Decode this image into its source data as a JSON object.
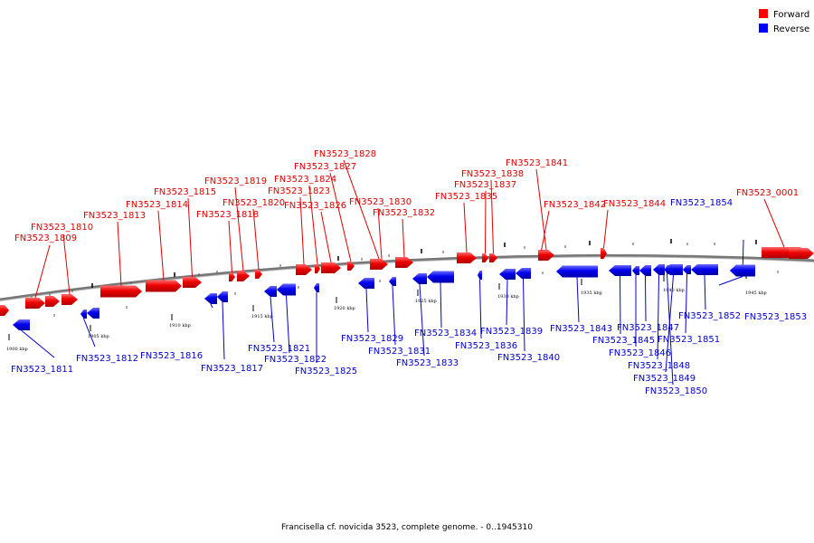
{
  "legend": [
    {
      "label": "Forward",
      "color": "#ff0000"
    },
    {
      "label": "Reverse",
      "color": "#0000ff"
    }
  ],
  "caption": "Francisella cf. novicida 3523, complete genome. - 0..1945310",
  "ticks": [
    {
      "kbp": 1900,
      "label": "1900 kbp"
    },
    {
      "kbp": 1905,
      "label": "1905 kbp"
    },
    {
      "kbp": 1910,
      "label": "1910 kbp"
    },
    {
      "kbp": 1915,
      "label": "1915 kbp"
    },
    {
      "kbp": 1920,
      "label": "1920 kbp"
    },
    {
      "kbp": 1925,
      "label": "1925 kbp"
    },
    {
      "kbp": 1930,
      "label": "1930 kbp"
    },
    {
      "kbp": 1935,
      "label": "1935 kbp"
    },
    {
      "kbp": 1940,
      "label": "1940 kbp"
    },
    {
      "kbp": 1945,
      "label": "1945 kbp"
    }
  ],
  "forward_genes": [
    {
      "name": "FN3523_1809"
    },
    {
      "name": "FN3523_1810"
    },
    {
      "name": "FN3523_1813"
    },
    {
      "name": "FN3523_1814"
    },
    {
      "name": "FN3523_1815"
    },
    {
      "name": "FN3523_1818"
    },
    {
      "name": "FN3523_1819"
    },
    {
      "name": "FN3523_1820"
    },
    {
      "name": "FN3523_1823"
    },
    {
      "name": "FN3523_1824"
    },
    {
      "name": "FN3523_1826"
    },
    {
      "name": "FN3523_1827"
    },
    {
      "name": "FN3523_1828"
    },
    {
      "name": "FN3523_1830"
    },
    {
      "name": "FN3523_1832"
    },
    {
      "name": "FN3523_1835"
    },
    {
      "name": "FN3523_1837"
    },
    {
      "name": "FN3523_1838"
    },
    {
      "name": "FN3523_1841"
    },
    {
      "name": "FN3523_1842"
    },
    {
      "name": "FN3523_1844"
    },
    {
      "name": "FN3523_0001"
    }
  ],
  "reverse_genes": [
    {
      "name": "FN3523_1811"
    },
    {
      "name": "FN3523_1812"
    },
    {
      "name": "FN3523_1816"
    },
    {
      "name": "FN3523_1817"
    },
    {
      "name": "FN3523_1821"
    },
    {
      "name": "FN3523_1822"
    },
    {
      "name": "FN3523_1825"
    },
    {
      "name": "FN3523_1829"
    },
    {
      "name": "FN3523_1831"
    },
    {
      "name": "FN3523_1833"
    },
    {
      "name": "FN3523_1834"
    },
    {
      "name": "FN3523_1836"
    },
    {
      "name": "FN3523_1839"
    },
    {
      "name": "FN3523_1840"
    },
    {
      "name": "FN3523_1843"
    },
    {
      "name": "FN3523_1845"
    },
    {
      "name": "FN3523_1846"
    },
    {
      "name": "FN3523_1847"
    },
    {
      "name": "FN3523_1848"
    },
    {
      "name": "FN3523_1849"
    },
    {
      "name": "FN3523_1850"
    },
    {
      "name": "FN3523_1851"
    },
    {
      "name": "FN3523_1852"
    },
    {
      "name": "FN3523_1853"
    },
    {
      "name": "FN3523_1854"
    }
  ]
}
